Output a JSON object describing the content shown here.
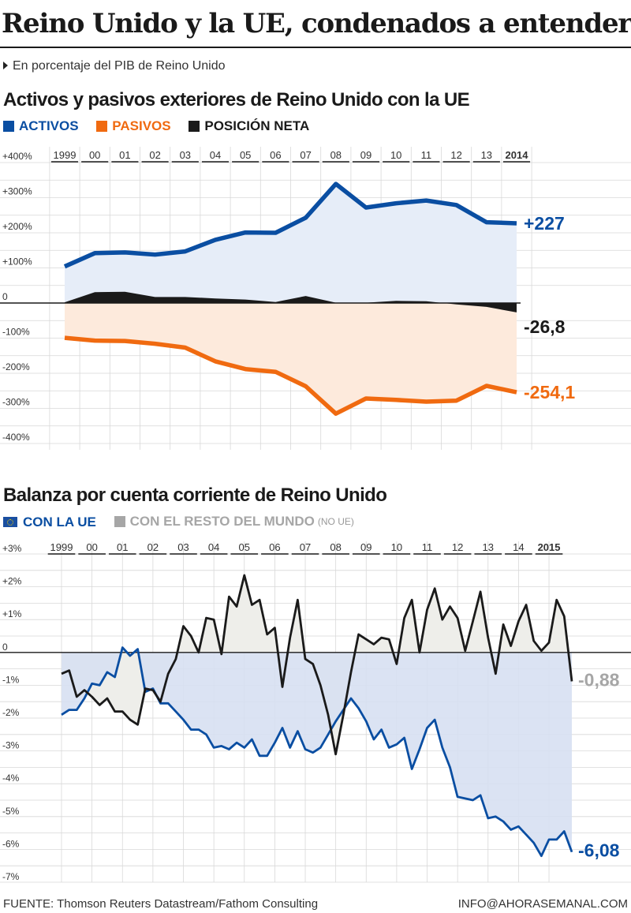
{
  "header": {
    "title": "Reino Unido y la UE, condenados a entenderse",
    "subtitle": "En porcentaje del PIB de Reino Unido"
  },
  "colors": {
    "activos": "#0a4ea2",
    "pasivos": "#f06a10",
    "neta": "#1a1a1a",
    "rest": "#a6a6a6",
    "activos_fill": "#e6edf8",
    "pasivos_fill": "#fdeadc",
    "neg_fill": "#d7e0f2",
    "pos_fill": "#eeeeea"
  },
  "chart1": {
    "title": "Activos y pasivos exteriores de Reino Unido con la UE",
    "legend": [
      "ACTIVOS",
      "PASIVOS",
      "POSICIÓN NETA"
    ],
    "end_labels": {
      "activos": "+227",
      "neta": "-26,8",
      "pasivos": "-254,1"
    }
  },
  "chart2": {
    "title": "Balanza por cuenta corriente de Reino Unido",
    "legend": [
      "CON LA UE",
      "CON EL RESTO DEL MUNDO"
    ],
    "legend_note": "(NO UE)",
    "end_labels": {
      "ue": "-6,08",
      "rest": "-0,88"
    }
  },
  "footer": {
    "source": "FUENTE: Thomson Reuters Datastream/Fathom Consulting",
    "contact": "INFO@AHORASEMANAL.COM"
  },
  "chart_data": [
    {
      "type": "area",
      "title": "Activos y pasivos exteriores de Reino Unido con la UE",
      "unit": "% del PIB",
      "x": [
        1999,
        2000,
        2001,
        2002,
        2003,
        2004,
        2005,
        2006,
        2007,
        2008,
        2009,
        2010,
        2011,
        2012,
        2013,
        2014
      ],
      "x_tick_labels": [
        "1999",
        "00",
        "01",
        "02",
        "03",
        "04",
        "05",
        "06",
        "07",
        "08",
        "09",
        "10",
        "11",
        "12",
        "13",
        "2014"
      ],
      "y_ticks": [
        "+400%",
        "+300%",
        "+200%",
        "+100%",
        "0",
        "-100%",
        "-200%",
        "-300%",
        "-400%"
      ],
      "ylim": [
        -400,
        400
      ],
      "grid": true,
      "series": [
        {
          "name": "ACTIVOS",
          "values": [
            104,
            142,
            144,
            138,
            147,
            180,
            201,
            200,
            243,
            339,
            272,
            284,
            292,
            279,
            230,
            227
          ]
        },
        {
          "name": "PASIVOS",
          "values": [
            -99,
            -107,
            -108,
            -116,
            -127,
            -166,
            -188,
            -196,
            -237,
            -315,
            -272,
            -276,
            -281,
            -278,
            -236,
            -254.1
          ]
        },
        {
          "name": "POSICIÓN NETA",
          "values": [
            2,
            31,
            32,
            17,
            17,
            13,
            10,
            3,
            20,
            1,
            1,
            6,
            5,
            -4,
            -11,
            -26.8
          ]
        }
      ]
    },
    {
      "type": "line",
      "title": "Balanza por cuenta corriente de Reino Unido",
      "unit": "% del PIB",
      "x_tick_labels": [
        "1999",
        "00",
        "01",
        "02",
        "03",
        "04",
        "05",
        "06",
        "07",
        "08",
        "09",
        "10",
        "11",
        "12",
        "13",
        "14",
        "2015"
      ],
      "x_start": 1999.0,
      "x_step": 0.25,
      "y_ticks": [
        "+3%",
        "+2%",
        "+1%",
        "0",
        "-1%",
        "-2%",
        "-3%",
        "-4%",
        "-5%",
        "-6%",
        "-7%"
      ],
      "ylim": [
        -7,
        3
      ],
      "grid": true,
      "series": [
        {
          "name": "CON LA UE",
          "values": [
            -1.9,
            -1.75,
            -1.75,
            -1.4,
            -0.95,
            -1.0,
            -0.6,
            -0.75,
            0.15,
            -0.1,
            0.1,
            -1.2,
            -1.1,
            -1.55,
            -1.55,
            -1.8,
            -2.05,
            -2.35,
            -2.35,
            -2.5,
            -2.9,
            -2.85,
            -2.95,
            -2.75,
            -2.9,
            -2.65,
            -3.15,
            -3.15,
            -2.75,
            -2.3,
            -2.9,
            -2.4,
            -2.95,
            -3.05,
            -2.9,
            -2.5,
            -2.1,
            -1.75,
            -1.4,
            -1.7,
            -2.1,
            -2.65,
            -2.35,
            -2.9,
            -2.8,
            -2.6,
            -3.55,
            -2.95,
            -2.3,
            -2.05,
            -2.9,
            -3.5,
            -4.4,
            -4.45,
            -4.5,
            -4.35,
            -5.05,
            -5.0,
            -5.15,
            -5.4,
            -5.3,
            -5.55,
            -5.8,
            -6.2,
            -5.7,
            -5.7,
            -5.45,
            -6.08
          ]
        },
        {
          "name": "CON EL RESTO DEL MUNDO",
          "values": [
            -0.65,
            -0.55,
            -1.35,
            -1.15,
            -1.35,
            -1.6,
            -1.4,
            -1.8,
            -1.8,
            -2.05,
            -2.2,
            -1.1,
            -1.15,
            -1.5,
            -0.65,
            -0.2,
            0.8,
            0.5,
            0.0,
            1.05,
            1.0,
            -0.05,
            1.7,
            1.4,
            2.35,
            1.45,
            1.6,
            0.55,
            0.75,
            -1.05,
            0.45,
            1.6,
            -0.2,
            -0.35,
            -1.0,
            -1.9,
            -3.1,
            -1.9,
            -0.6,
            0.55,
            0.4,
            0.25,
            0.45,
            0.4,
            -0.35,
            1.05,
            1.6,
            0.0,
            1.3,
            1.95,
            1.0,
            1.4,
            1.05,
            0.05,
            0.95,
            1.85,
            0.45,
            -0.65,
            0.85,
            0.2,
            0.95,
            1.45,
            0.35,
            0.05,
            0.3,
            1.6,
            1.1,
            -0.88
          ]
        }
      ]
    }
  ]
}
